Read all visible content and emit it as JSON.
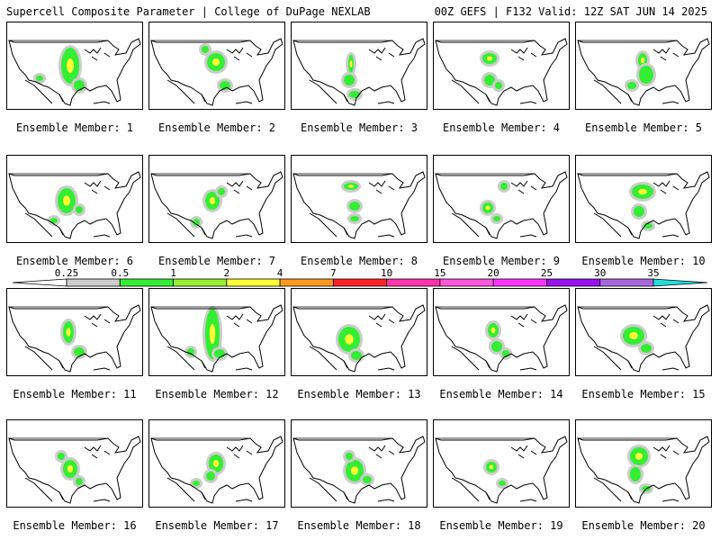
{
  "header": {
    "title_left": "Supercell Composite Parameter | College of DuPage NEXLAB",
    "title_right": "00Z GEFS | F132 Valid: 12Z SAT JUN 14 2025"
  },
  "colorbar": {
    "ticks": [
      "0.25",
      "0.5",
      "1",
      "2",
      "4",
      "7",
      "10",
      "15",
      "20",
      "25",
      "30",
      "35"
    ],
    "colors": [
      "#cccccc",
      "#33ee33",
      "#99ee33",
      "#ffff33",
      "#ff9922",
      "#ff2222",
      "#ff33aa",
      "#ff55dd",
      "#ff33ff",
      "#9911ee",
      "#aa66dd",
      "#22dddd"
    ]
  },
  "panels": [
    {
      "caption": "Ensemble Member: 1"
    },
    {
      "caption": "Ensemble Member: 2"
    },
    {
      "caption": "Ensemble Member: 3"
    },
    {
      "caption": "Ensemble Member: 4"
    },
    {
      "caption": "Ensemble Member: 5"
    },
    {
      "caption": "Ensemble Member: 6"
    },
    {
      "caption": "Ensemble Member: 7"
    },
    {
      "caption": "Ensemble Member: 8"
    },
    {
      "caption": "Ensemble Member: 9"
    },
    {
      "caption": "Ensemble Member: 10"
    },
    {
      "caption": "Ensemble Member: 11"
    },
    {
      "caption": "Ensemble Member: 12"
    },
    {
      "caption": "Ensemble Member: 13"
    },
    {
      "caption": "Ensemble Member: 14"
    },
    {
      "caption": "Ensemble Member: 15"
    },
    {
      "caption": "Ensemble Member: 16"
    },
    {
      "caption": "Ensemble Member: 17"
    },
    {
      "caption": "Ensemble Member: 18"
    },
    {
      "caption": "Ensemble Member: 19"
    },
    {
      "caption": "Ensemble Member: 20"
    }
  ]
}
